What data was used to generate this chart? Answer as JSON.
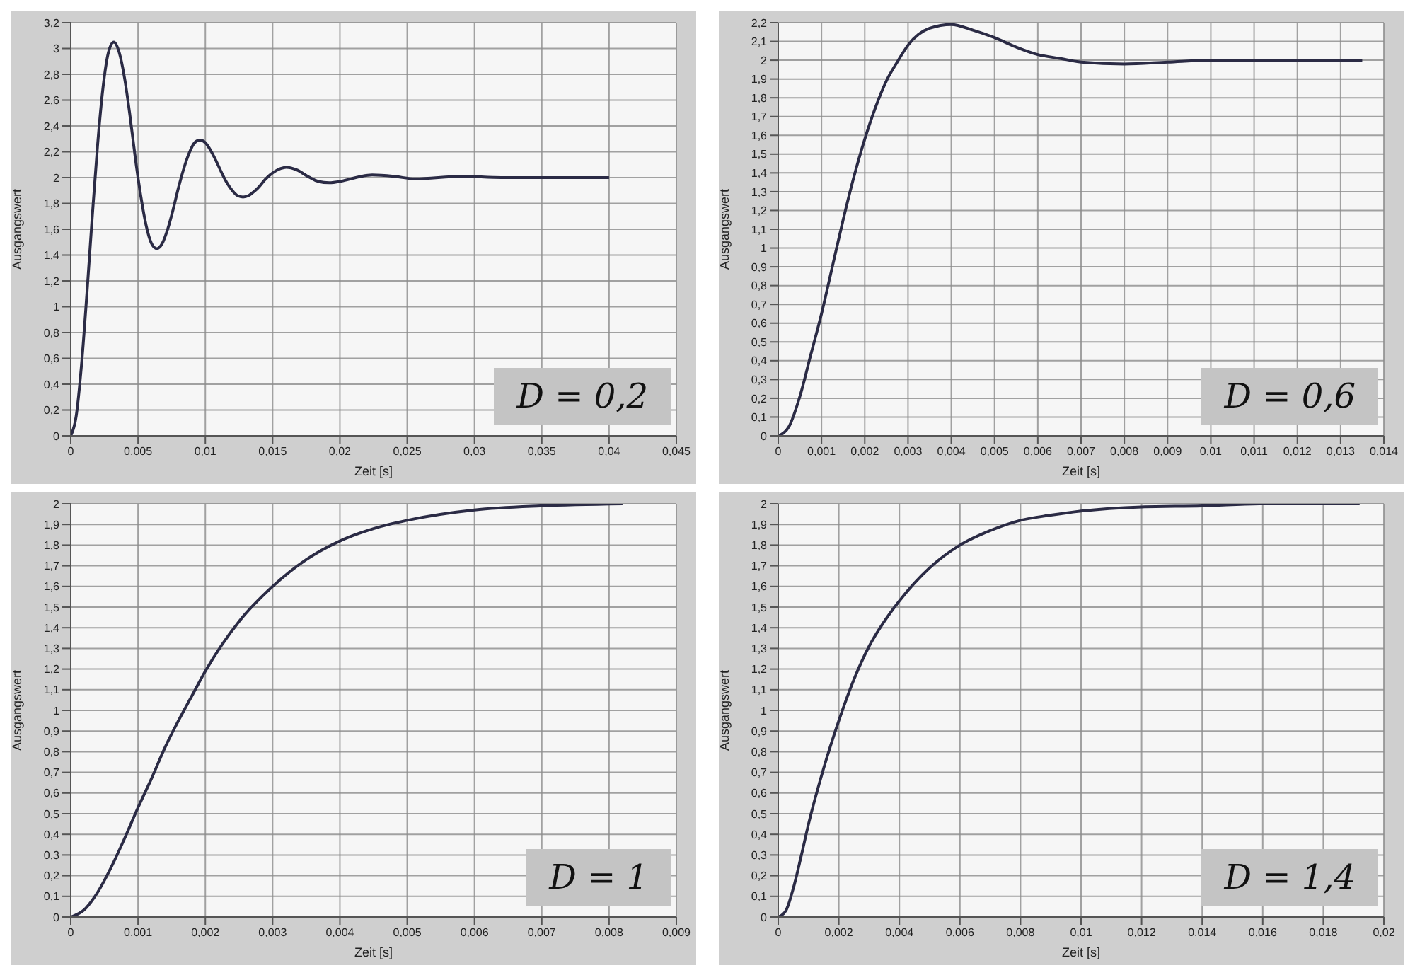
{
  "chart_data": [
    {
      "type": "line",
      "xlabel": "Zeit [s]",
      "ylabel": "Ausgangswert",
      "annotations": [
        "D = 0,2"
      ],
      "grid": true,
      "xlim": [
        0,
        0.045
      ],
      "xticks": [
        {
          "value": 0,
          "label": "0"
        },
        {
          "value": 0.005,
          "label": "0,005"
        },
        {
          "value": 0.01,
          "label": "0,01"
        },
        {
          "value": 0.015,
          "label": "0,015"
        },
        {
          "value": 0.02,
          "label": "0,02"
        },
        {
          "value": 0.025,
          "label": "0,025"
        },
        {
          "value": 0.03,
          "label": "0,03"
        },
        {
          "value": 0.035,
          "label": "0,035"
        },
        {
          "value": 0.04,
          "label": "0,04"
        },
        {
          "value": 0.045,
          "label": "0,045"
        }
      ],
      "ylim": [
        0,
        3.2
      ],
      "yticks": [
        0,
        {
          "value": 0.2,
          "label": "0,2"
        },
        {
          "value": 0.4,
          "label": "0,4"
        },
        {
          "value": 0.6,
          "label": "0,6"
        },
        {
          "value": 0.8,
          "label": "0,8"
        },
        1,
        {
          "value": 1.2,
          "label": "1,2"
        },
        {
          "value": 1.4,
          "label": "1,4"
        },
        {
          "value": 1.6,
          "label": "1,6"
        },
        {
          "value": 1.8,
          "label": "1,8"
        },
        2,
        {
          "value": 2.2,
          "label": "2,2"
        },
        {
          "value": 2.4,
          "label": "2,4"
        },
        {
          "value": 2.6,
          "label": "2,6"
        },
        {
          "value": 2.8,
          "label": "2,8"
        },
        3,
        {
          "value": 3.2,
          "label": "3,2"
        }
      ],
      "series": [
        {
          "color": "#2b2b45",
          "x": [
            0,
            0.0004,
            0.0008,
            0.0012,
            0.0016,
            0.002,
            0.0024,
            0.0028,
            0.0032,
            0.0036,
            0.004,
            0.0044,
            0.0048,
            0.0052,
            0.0056,
            0.006,
            0.0064,
            0.0068,
            0.0072,
            0.0076,
            0.008,
            0.0084,
            0.0088,
            0.0092,
            0.0096,
            0.01,
            0.0104,
            0.0108,
            0.0112,
            0.0116,
            0.012,
            0.0124,
            0.0128,
            0.0132,
            0.0136,
            0.014,
            0.0144,
            0.0148,
            0.0152,
            0.0156,
            0.016,
            0.0168,
            0.0176,
            0.0184,
            0.0192,
            0.02,
            0.0208,
            0.0216,
            0.0224,
            0.024,
            0.0256,
            0.029,
            0.032,
            0.036,
            0.04
          ],
          "values": [
            0,
            0.15,
            0.55,
            1.1,
            1.7,
            2.26,
            2.7,
            2.97,
            3.05,
            2.97,
            2.77,
            2.48,
            2.15,
            1.86,
            1.63,
            1.49,
            1.45,
            1.49,
            1.6,
            1.75,
            1.92,
            2.07,
            2.19,
            2.27,
            2.29,
            2.27,
            2.21,
            2.13,
            2.04,
            1.96,
            1.9,
            1.86,
            1.85,
            1.86,
            1.89,
            1.93,
            1.98,
            2.02,
            2.05,
            2.07,
            2.08,
            2.06,
            2.01,
            1.97,
            1.96,
            1.97,
            1.99,
            2.01,
            2.02,
            2.01,
            1.99,
            2.01,
            2,
            2,
            2
          ]
        }
      ]
    },
    {
      "type": "line",
      "xlabel": "Zeit [s]",
      "ylabel": "Ausgangswert",
      "annotations": [
        "D = 0,6"
      ],
      "grid": true,
      "xlim": [
        0,
        0.014
      ],
      "xticks": [
        {
          "value": 0,
          "label": "0"
        },
        {
          "value": 0.001,
          "label": "0,001"
        },
        {
          "value": 0.002,
          "label": "0,002"
        },
        {
          "value": 0.003,
          "label": "0,003"
        },
        {
          "value": 0.004,
          "label": "0,004"
        },
        {
          "value": 0.005,
          "label": "0,005"
        },
        {
          "value": 0.006,
          "label": "0,006"
        },
        {
          "value": 0.007,
          "label": "0,007"
        },
        {
          "value": 0.008,
          "label": "0,008"
        },
        {
          "value": 0.009,
          "label": "0,009"
        },
        {
          "value": 0.01,
          "label": "0,01"
        },
        {
          "value": 0.011,
          "label": "0,011"
        },
        {
          "value": 0.012,
          "label": "0,012"
        },
        {
          "value": 0.013,
          "label": "0,013"
        },
        {
          "value": 0.014,
          "label": "0,014"
        }
      ],
      "ylim": [
        0,
        2.2
      ],
      "yticks": [
        0,
        {
          "value": 0.1,
          "label": "0,1"
        },
        {
          "value": 0.2,
          "label": "0,2"
        },
        {
          "value": 0.3,
          "label": "0,3"
        },
        {
          "value": 0.4,
          "label": "0,4"
        },
        {
          "value": 0.5,
          "label": "0,5"
        },
        {
          "value": 0.6,
          "label": "0,6"
        },
        {
          "value": 0.7,
          "label": "0,7"
        },
        {
          "value": 0.8,
          "label": "0,8"
        },
        {
          "value": 0.9,
          "label": "0,9"
        },
        1,
        {
          "value": 1.1,
          "label": "1,1"
        },
        {
          "value": 1.2,
          "label": "1,2"
        },
        {
          "value": 1.3,
          "label": "1,3"
        },
        {
          "value": 1.4,
          "label": "1,4"
        },
        {
          "value": 1.5,
          "label": "1,5"
        },
        {
          "value": 1.6,
          "label": "1,6"
        },
        {
          "value": 1.7,
          "label": "1,7"
        },
        {
          "value": 1.8,
          "label": "1,8"
        },
        {
          "value": 1.9,
          "label": "1,9"
        },
        2,
        {
          "value": 2.1,
          "label": "2,1"
        },
        {
          "value": 2.2,
          "label": "2,2"
        }
      ],
      "series": [
        {
          "color": "#2b2b45",
          "x": [
            0,
            0.00025,
            0.0005,
            0.00075,
            0.001,
            0.00125,
            0.0015,
            0.00175,
            0.002,
            0.00225,
            0.0025,
            0.00275,
            0.003,
            0.0035,
            0.004,
            0.0045,
            0.005,
            0.0055,
            0.006,
            0.0065,
            0.007,
            0.008,
            0.009,
            0.01,
            0.011,
            0.012,
            0.0135
          ],
          "values": [
            0,
            0.05,
            0.21,
            0.43,
            0.65,
            0.9,
            1.15,
            1.38,
            1.58,
            1.75,
            1.89,
            1.99,
            2.08,
            2.17,
            2.19,
            2.16,
            2.12,
            2.07,
            2.03,
            2.01,
            1.99,
            1.98,
            1.99,
            2,
            2,
            2,
            2
          ]
        }
      ]
    },
    {
      "type": "line",
      "xlabel": "Zeit [s]",
      "ylabel": "Ausgangswert",
      "annotations": [
        "D = 1"
      ],
      "grid": true,
      "xlim": [
        0,
        0.009
      ],
      "xticks": [
        {
          "value": 0,
          "label": "0"
        },
        {
          "value": 0.001,
          "label": "0,001"
        },
        {
          "value": 0.002,
          "label": "0,002"
        },
        {
          "value": 0.003,
          "label": "0,003"
        },
        {
          "value": 0.004,
          "label": "0,004"
        },
        {
          "value": 0.005,
          "label": "0,005"
        },
        {
          "value": 0.006,
          "label": "0,006"
        },
        {
          "value": 0.007,
          "label": "0,007"
        },
        {
          "value": 0.008,
          "label": "0,008"
        },
        {
          "value": 0.009,
          "label": "0,009"
        }
      ],
      "ylim": [
        0,
        2
      ],
      "yticks": [
        0,
        {
          "value": 0.1,
          "label": "0,1"
        },
        {
          "value": 0.2,
          "label": "0,2"
        },
        {
          "value": 0.3,
          "label": "0,3"
        },
        {
          "value": 0.4,
          "label": "0,4"
        },
        {
          "value": 0.5,
          "label": "0,5"
        },
        {
          "value": 0.6,
          "label": "0,6"
        },
        {
          "value": 0.7,
          "label": "0,7"
        },
        {
          "value": 0.8,
          "label": "0,8"
        },
        {
          "value": 0.9,
          "label": "0,9"
        },
        1,
        {
          "value": 1.1,
          "label": "1,1"
        },
        {
          "value": 1.2,
          "label": "1,2"
        },
        {
          "value": 1.3,
          "label": "1,3"
        },
        {
          "value": 1.4,
          "label": "1,4"
        },
        {
          "value": 1.5,
          "label": "1,5"
        },
        {
          "value": 1.6,
          "label": "1,6"
        },
        {
          "value": 1.7,
          "label": "1,7"
        },
        {
          "value": 1.8,
          "label": "1,8"
        },
        {
          "value": 1.9,
          "label": "1,9"
        },
        2
      ],
      "series": [
        {
          "color": "#2b2b45",
          "x": [
            0,
            0.0002,
            0.0004,
            0.0006,
            0.0008,
            0.001,
            0.0012,
            0.0014,
            0.0016,
            0.0018,
            0.002,
            0.0025,
            0.003,
            0.0035,
            0.004,
            0.0045,
            0.005,
            0.006,
            0.007,
            0.0082
          ],
          "values": [
            0,
            0.035,
            0.12,
            0.24,
            0.38,
            0.53,
            0.67,
            0.82,
            0.95,
            1.07,
            1.19,
            1.43,
            1.6,
            1.73,
            1.82,
            1.88,
            1.92,
            1.97,
            1.99,
            2
          ]
        }
      ]
    },
    {
      "type": "line",
      "xlabel": "Zeit [s]",
      "ylabel": "Ausgangswert",
      "annotations": [
        "D = 1,4"
      ],
      "grid": true,
      "xlim": [
        0,
        0.02
      ],
      "xticks": [
        {
          "value": 0,
          "label": "0"
        },
        {
          "value": 0.002,
          "label": "0,002"
        },
        {
          "value": 0.004,
          "label": "0,004"
        },
        {
          "value": 0.006,
          "label": "0,006"
        },
        {
          "value": 0.008,
          "label": "0,008"
        },
        {
          "value": 0.01,
          "label": "0,01"
        },
        {
          "value": 0.012,
          "label": "0,012"
        },
        {
          "value": 0.014,
          "label": "0,014"
        },
        {
          "value": 0.016,
          "label": "0,016"
        },
        {
          "value": 0.018,
          "label": "0,018"
        },
        {
          "value": 0.02,
          "label": "0,02"
        }
      ],
      "ylim": [
        0,
        2
      ],
      "yticks": [
        0,
        {
          "value": 0.1,
          "label": "0,1"
        },
        {
          "value": 0.2,
          "label": "0,2"
        },
        {
          "value": 0.3,
          "label": "0,3"
        },
        {
          "value": 0.4,
          "label": "0,4"
        },
        {
          "value": 0.5,
          "label": "0,5"
        },
        {
          "value": 0.6,
          "label": "0,6"
        },
        {
          "value": 0.7,
          "label": "0,7"
        },
        {
          "value": 0.8,
          "label": "0,8"
        },
        {
          "value": 0.9,
          "label": "0,9"
        },
        1,
        {
          "value": 1.1,
          "label": "1,1"
        },
        {
          "value": 1.2,
          "label": "1,2"
        },
        {
          "value": 1.3,
          "label": "1,3"
        },
        {
          "value": 1.4,
          "label": "1,4"
        },
        {
          "value": 1.5,
          "label": "1,5"
        },
        {
          "value": 1.6,
          "label": "1,6"
        },
        {
          "value": 1.7,
          "label": "1,7"
        },
        {
          "value": 1.8,
          "label": "1,8"
        },
        {
          "value": 1.9,
          "label": "1,9"
        },
        2
      ],
      "series": [
        {
          "color": "#2b2b45",
          "x": [
            0,
            0.00025,
            0.0005,
            0.00075,
            0.001,
            0.0015,
            0.002,
            0.0025,
            0.003,
            0.0035,
            0.004,
            0.005,
            0.006,
            0.007,
            0.008,
            0.009,
            0.01,
            0.012,
            0.014,
            0.016,
            0.0192
          ],
          "values": [
            0,
            0.03,
            0.14,
            0.29,
            0.45,
            0.72,
            0.95,
            1.15,
            1.31,
            1.43,
            1.53,
            1.69,
            1.8,
            1.87,
            1.92,
            1.945,
            1.965,
            1.985,
            1.99,
            2,
            2
          ]
        }
      ]
    }
  ]
}
